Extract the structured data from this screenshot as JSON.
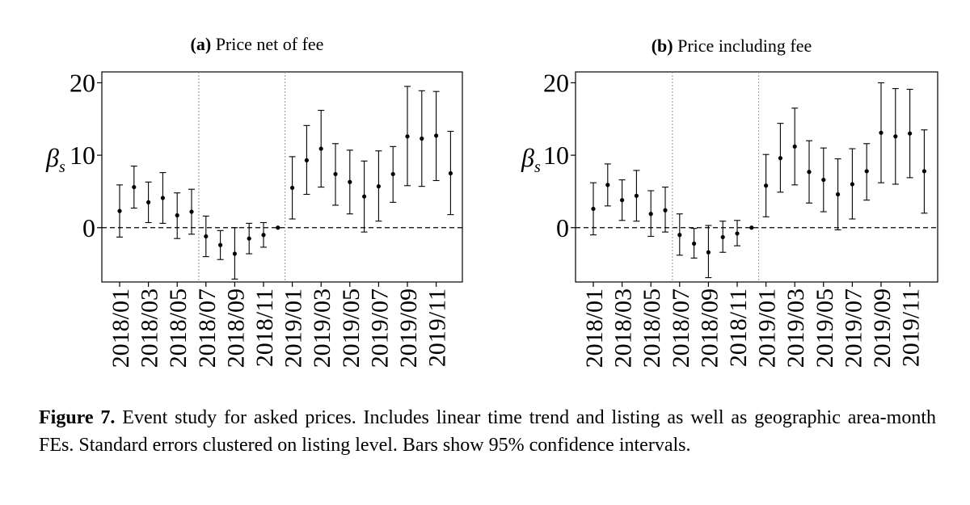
{
  "chart_data": [
    {
      "type": "errorbar",
      "panel_label": "(a)",
      "title": "Price net of fee",
      "ylabel_symbol": "β",
      "ylabel_subscript": "s",
      "yticks": [
        0,
        10,
        20
      ],
      "ylim": [
        -7.5,
        21.5
      ],
      "months": [
        "2018/01",
        "2018/02",
        "2018/03",
        "2018/04",
        "2018/05",
        "2018/06",
        "2018/07",
        "2018/08",
        "2018/09",
        "2018/10",
        "2018/11",
        "2018/12",
        "2019/01",
        "2019/02",
        "2019/03",
        "2019/04",
        "2019/05",
        "2019/06",
        "2019/07",
        "2019/08",
        "2019/09",
        "2019/10",
        "2019/11",
        "2019/12"
      ],
      "tick_labels": [
        "2018/01",
        "2018/03",
        "2018/05",
        "2018/07",
        "2018/09",
        "2018/11",
        "2019/01",
        "2019/03",
        "2019/05",
        "2019/07",
        "2019/09",
        "2019/11"
      ],
      "estimates": [
        2.3,
        5.6,
        3.5,
        4.1,
        1.7,
        2.2,
        -1.2,
        -2.4,
        -3.6,
        -1.5,
        -1.0,
        0.0,
        5.5,
        9.3,
        10.9,
        7.4,
        6.3,
        4.3,
        5.7,
        7.4,
        12.6,
        12.3,
        12.7,
        7.5
      ],
      "ci_low": [
        -1.3,
        2.7,
        0.7,
        0.6,
        -1.5,
        -0.9,
        -4.0,
        -4.4,
        -7.1,
        -3.6,
        -2.7,
        0.0,
        1.2,
        4.6,
        5.6,
        3.1,
        1.9,
        -0.6,
        0.9,
        3.5,
        5.8,
        5.7,
        6.5,
        1.8
      ],
      "ci_high": [
        5.9,
        8.5,
        6.3,
        7.6,
        4.8,
        5.3,
        1.6,
        -0.4,
        0.0,
        0.6,
        0.7,
        0.0,
        9.8,
        14.1,
        16.2,
        11.6,
        10.7,
        9.2,
        10.6,
        11.2,
        19.5,
        18.9,
        18.8,
        13.3
      ],
      "vlines": [
        "2018/07",
        "2019/01"
      ],
      "hline": 0
    },
    {
      "type": "errorbar",
      "panel_label": "(b)",
      "title": "Price including fee",
      "ylabel_symbol": "β",
      "ylabel_subscript": "s",
      "yticks": [
        0,
        10,
        20
      ],
      "ylim": [
        -7.5,
        21.5
      ],
      "months": [
        "2018/01",
        "2018/02",
        "2018/03",
        "2018/04",
        "2018/05",
        "2018/06",
        "2018/07",
        "2018/08",
        "2018/09",
        "2018/10",
        "2018/11",
        "2018/12",
        "2019/01",
        "2019/02",
        "2019/03",
        "2019/04",
        "2019/05",
        "2019/06",
        "2019/07",
        "2019/08",
        "2019/09",
        "2019/10",
        "2019/11",
        "2019/12"
      ],
      "tick_labels": [
        "2018/01",
        "2018/03",
        "2018/05",
        "2018/07",
        "2018/09",
        "2018/11",
        "2019/01",
        "2019/03",
        "2019/05",
        "2019/07",
        "2019/09",
        "2019/11"
      ],
      "estimates": [
        2.6,
        5.9,
        3.8,
        4.4,
        1.9,
        2.4,
        -1.0,
        -2.2,
        -3.4,
        -1.3,
        -0.8,
        0.0,
        5.8,
        9.6,
        11.2,
        7.7,
        6.6,
        4.6,
        6.0,
        7.8,
        13.1,
        12.6,
        13.0,
        7.8
      ],
      "ci_low": [
        -1.0,
        3.0,
        1.0,
        0.9,
        -1.2,
        -0.6,
        -3.8,
        -4.2,
        -6.9,
        -3.4,
        -2.5,
        0.0,
        1.5,
        4.9,
        5.9,
        3.4,
        2.2,
        -0.3,
        1.2,
        3.8,
        6.2,
        6.0,
        6.9,
        2.0
      ],
      "ci_high": [
        6.2,
        8.8,
        6.6,
        7.9,
        5.1,
        5.6,
        1.9,
        -0.1,
        0.3,
        0.9,
        1.0,
        0.0,
        10.1,
        14.4,
        16.5,
        12.0,
        11.0,
        9.5,
        10.9,
        11.6,
        20.0,
        19.2,
        19.1,
        13.5
      ],
      "vlines": [
        "2018/07",
        "2019/01"
      ],
      "hline": 0
    }
  ],
  "caption": {
    "figure_label": "Figure 7.",
    "text": "Event study for asked prices. Includes linear time trend and listing as well as geographic area-month FEs. Standard errors clustered on listing level. Bars show 95% confidence intervals."
  }
}
